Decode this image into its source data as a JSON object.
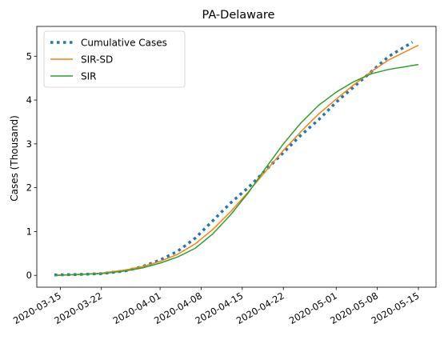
{
  "chart_data": {
    "type": "line",
    "title": "PA-Delaware",
    "xlabel": "",
    "ylabel": "Cases (Thousand)",
    "x_type": "date",
    "xlim": [
      "2020-03-11",
      "2020-05-18"
    ],
    "ylim": [
      -0.27,
      5.68
    ],
    "xticks": [
      "2020-03-15",
      "2020-03-22",
      "2020-04-01",
      "2020-04-08",
      "2020-04-15",
      "2020-04-22",
      "2020-05-01",
      "2020-05-08",
      "2020-05-15"
    ],
    "yticks": [
      0,
      1,
      2,
      3,
      4,
      5
    ],
    "grid": false,
    "legend_position": "top-left",
    "series": [
      {
        "name": "Cumulative Cases",
        "color": "#1f77b4",
        "style": "dotted",
        "x": [
          "2020-03-14",
          "2020-03-18",
          "2020-03-22",
          "2020-03-26",
          "2020-03-29",
          "2020-04-01",
          "2020-04-04",
          "2020-04-07",
          "2020-04-10",
          "2020-04-13",
          "2020-04-16",
          "2020-04-19",
          "2020-04-22",
          "2020-04-25",
          "2020-04-28",
          "2020-05-01",
          "2020-05-04",
          "2020-05-07",
          "2020-05-10",
          "2020-05-14"
        ],
        "y": [
          0.01,
          0.02,
          0.04,
          0.1,
          0.2,
          0.35,
          0.55,
          0.85,
          1.25,
          1.65,
          2.0,
          2.4,
          2.8,
          3.2,
          3.55,
          3.95,
          4.3,
          4.65,
          5.0,
          5.32
        ]
      },
      {
        "name": "SIR-SD",
        "color": "#ff7f0e",
        "style": "solid",
        "x": [
          "2020-03-14",
          "2020-03-18",
          "2020-03-22",
          "2020-03-26",
          "2020-03-29",
          "2020-04-01",
          "2020-04-04",
          "2020-04-07",
          "2020-04-10",
          "2020-04-13",
          "2020-04-16",
          "2020-04-19",
          "2020-04-22",
          "2020-04-25",
          "2020-04-28",
          "2020-05-01",
          "2020-05-04",
          "2020-05-07",
          "2020-05-10",
          "2020-05-15"
        ],
        "y": [
          0.0,
          0.02,
          0.05,
          0.12,
          0.2,
          0.32,
          0.48,
          0.72,
          1.05,
          1.45,
          1.9,
          2.38,
          2.85,
          3.28,
          3.68,
          4.02,
          4.35,
          4.65,
          4.92,
          5.25
        ]
      },
      {
        "name": "SIR",
        "color": "#2ca02c",
        "style": "solid",
        "x": [
          "2020-03-14",
          "2020-03-18",
          "2020-03-22",
          "2020-03-26",
          "2020-03-29",
          "2020-04-01",
          "2020-04-04",
          "2020-04-07",
          "2020-04-10",
          "2020-04-13",
          "2020-04-16",
          "2020-04-19",
          "2020-04-22",
          "2020-04-25",
          "2020-04-28",
          "2020-05-01",
          "2020-05-04",
          "2020-05-07",
          "2020-05-10",
          "2020-05-15"
        ],
        "y": [
          0.0,
          0.02,
          0.04,
          0.1,
          0.17,
          0.28,
          0.42,
          0.62,
          0.95,
          1.38,
          1.88,
          2.45,
          3.0,
          3.48,
          3.88,
          4.18,
          4.42,
          4.6,
          4.7,
          4.81
        ]
      }
    ]
  }
}
